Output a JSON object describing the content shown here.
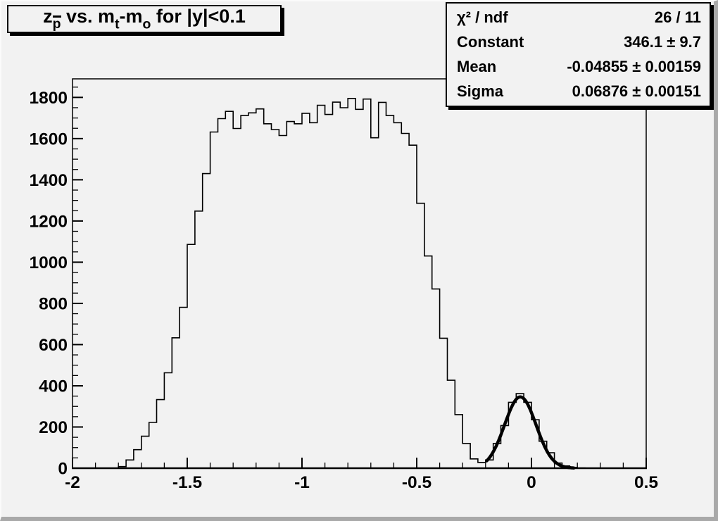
{
  "window": {
    "background": "#f2f2f2",
    "bevel_light": "#fbfbfb",
    "bevel_dark": "#a9a9a9",
    "line_color": "#000000"
  },
  "title_box": {
    "plain_text": "z_p̄ vs. m_t-m_o for |y|<0.1",
    "segments": {
      "s0": {
        "text": "z"
      },
      "s1": {
        "text": "p"
      },
      "s2": {
        "text": " vs. m"
      },
      "s3": {
        "text": "t"
      },
      "s4": {
        "text": "-m"
      },
      "s5": {
        "text": "o"
      },
      "s6": {
        "text": " for |y|<0.1"
      }
    }
  },
  "stats_box": {
    "rows": {
      "r0": {
        "label": "χ² / ndf",
        "value": "26 / 11"
      },
      "r1": {
        "label": "Constant",
        "value": "346.1 ± 9.7"
      },
      "r2": {
        "label": "Mean",
        "value": "-0.04855 ± 0.00159"
      },
      "r3": {
        "label": "Sigma",
        "value": "0.06876 ± 0.00151"
      }
    }
  },
  "chart_data": {
    "type": "bar",
    "subtype": "step-histogram",
    "title": "z_p̄ vs. m_t-m_o for |y|<0.1",
    "xlabel": "",
    "ylabel": "",
    "grid": false,
    "legend_position": "none",
    "xlim": [
      -2.0,
      0.5
    ],
    "ylim": [
      0,
      1890
    ],
    "x_major_ticks": [
      -2,
      -1.5,
      -1,
      -0.5,
      0,
      0.5
    ],
    "x_tick_labels": [
      "-2",
      "-1.5",
      "-1",
      "-0.5",
      "0",
      "0.5"
    ],
    "x_minor_step": 0.1,
    "y_major_step": 200,
    "y_major_max": 1800,
    "y_minor_step": 50,
    "bin_start": -2.0,
    "bin_width": 0.0333333,
    "bins": [
      0,
      0,
      0,
      0,
      0,
      0,
      8,
      40,
      90,
      155,
      222,
      333,
      463,
      633,
      781,
      1086,
      1248,
      1430,
      1632,
      1697,
      1732,
      1649,
      1712,
      1725,
      1744,
      1672,
      1644,
      1615,
      1683,
      1672,
      1723,
      1677,
      1762,
      1717,
      1777,
      1750,
      1795,
      1742,
      1792,
      1604,
      1776,
      1712,
      1677,
      1625,
      1568,
      1286,
      1030,
      870,
      631,
      427,
      260,
      120,
      45,
      28,
      40,
      120,
      207,
      320,
      362,
      320,
      235,
      131,
      75,
      25,
      11,
      4,
      1,
      0,
      0,
      0,
      0,
      0,
      0,
      0,
      0
    ],
    "fit": {
      "type": "gaussian",
      "constant": 346.1,
      "mean": -0.04855,
      "sigma": 0.06876,
      "x_from": -0.195,
      "x_to": 0.185
    }
  }
}
